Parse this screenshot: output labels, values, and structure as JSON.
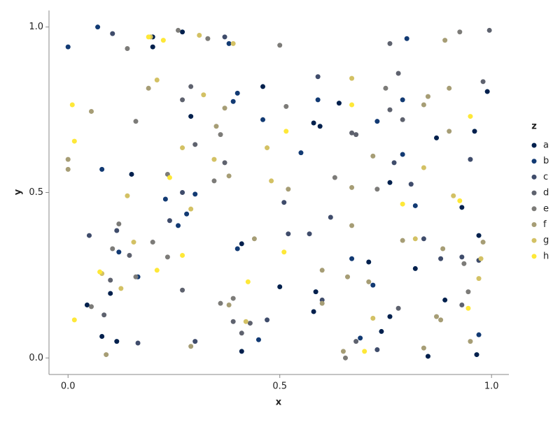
{
  "chart_data": {
    "type": "scatter",
    "x_label": "x",
    "y_label": "y",
    "legend_title": "z",
    "legend_position": "right",
    "xlim": [
      -0.045,
      1.041
    ],
    "ylim": [
      -0.05,
      1.05
    ],
    "xticks": [
      {
        "value": 0,
        "label": "0.0"
      },
      {
        "value": 0.5,
        "label": "0.5"
      },
      {
        "value": 1,
        "label": "1.0"
      }
    ],
    "yticks": [
      {
        "value": 0,
        "label": "0.0"
      },
      {
        "value": 0.5,
        "label": "0.5"
      },
      {
        "value": 1,
        "label": "1.0"
      }
    ],
    "series": [
      {
        "name": "a",
        "color": "#00204d",
        "x": [
          0.27,
          0.2,
          0.2,
          0.46,
          0.29,
          0.15,
          0.595,
          0.58,
          0.64,
          0.87,
          0.99,
          0.96,
          0.76,
          0.93,
          0.97,
          0.41,
          0.71,
          0.5,
          0.585,
          0.1,
          0.89,
          0.045,
          0.58,
          0.74,
          0.08,
          0.115,
          0.41,
          0.85,
          0.965,
          0.76,
          0.82
        ],
        "y": [
          0.985,
          0.97,
          0.94,
          0.82,
          0.73,
          0.555,
          0.7,
          0.71,
          0.77,
          0.665,
          0.805,
          0.685,
          0.53,
          0.455,
          0.37,
          0.345,
          0.29,
          0.215,
          0.2,
          0.195,
          0.175,
          0.16,
          0.14,
          0.08,
          0.065,
          0.05,
          0.02,
          0.005,
          0.01,
          0.125,
          0.27
        ]
      },
      {
        "name": "b",
        "color": "#123a73",
        "x": [
          0.07,
          0.0,
          0.38,
          0.8,
          0.4,
          0.39,
          0.46,
          0.55,
          0.59,
          0.73,
          0.79,
          0.79,
          0.08,
          0.23,
          0.3,
          0.28,
          0.26,
          0.4,
          0.165,
          0.67,
          0.72,
          0.69,
          0.45,
          0.97,
          0.82,
          0.12
        ],
        "y": [
          1.0,
          0.94,
          0.95,
          0.965,
          0.8,
          0.775,
          0.72,
          0.62,
          0.78,
          0.715,
          0.78,
          0.615,
          0.57,
          0.48,
          0.495,
          0.435,
          0.4,
          0.33,
          0.245,
          0.3,
          0.22,
          0.06,
          0.055,
          0.07,
          0.46,
          0.32
        ]
      },
      {
        "name": "c",
        "color": "#3f4c6b",
        "x": [
          0.105,
          0.37,
          0.59,
          0.77,
          0.81,
          0.51,
          0.52,
          0.57,
          0.62,
          0.27,
          0.24,
          0.115,
          0.05,
          0.84,
          0.88,
          0.93,
          0.97,
          0.95,
          0.47,
          0.6,
          0.3,
          0.165,
          0.73
        ],
        "y": [
          0.98,
          0.97,
          0.85,
          0.59,
          0.525,
          0.47,
          0.375,
          0.375,
          0.425,
          0.5,
          0.415,
          0.385,
          0.37,
          0.36,
          0.3,
          0.305,
          0.295,
          0.6,
          0.115,
          0.175,
          0.05,
          0.045,
          0.025
        ]
      },
      {
        "name": "d",
        "color": "#5e626e",
        "x": [
          0.995,
          0.76,
          0.78,
          0.98,
          0.29,
          0.27,
          0.76,
          0.79,
          0.3,
          0.37,
          0.67,
          0.68,
          0.145,
          0.1,
          0.27,
          0.085,
          0.39,
          0.41,
          0.43,
          0.68,
          0.78,
          0.93
        ],
        "y": [
          0.99,
          0.95,
          0.86,
          0.835,
          0.82,
          0.78,
          0.75,
          0.72,
          0.645,
          0.59,
          0.68,
          0.675,
          0.31,
          0.235,
          0.205,
          0.13,
          0.11,
          0.075,
          0.105,
          0.05,
          0.15,
          0.16
        ]
      },
      {
        "name": "e",
        "color": "#7c7b78",
        "x": [
          0.26,
          0.33,
          0.14,
          0.5,
          0.925,
          0.75,
          0.515,
          0.16,
          0.36,
          0.235,
          0.345,
          0.63,
          0.73,
          0.12,
          0.105,
          0.2,
          0.16,
          0.235,
          0.36,
          0.39,
          0.655,
          0.935,
          0.945,
          0.055
        ],
        "y": [
          0.99,
          0.965,
          0.935,
          0.945,
          0.985,
          0.815,
          0.76,
          0.715,
          0.675,
          0.555,
          0.535,
          0.545,
          0.51,
          0.405,
          0.33,
          0.35,
          0.245,
          0.305,
          0.165,
          0.18,
          0.0,
          0.285,
          0.2,
          0.155
        ]
      },
      {
        "name": "f",
        "color": "#a69d75",
        "x": [
          0.19,
          0.055,
          0.37,
          0.35,
          0.0,
          0.0,
          0.38,
          0.52,
          0.67,
          0.72,
          0.85,
          0.84,
          0.9,
          0.9,
          0.89,
          0.44,
          0.67,
          0.79,
          0.885,
          0.98,
          0.71,
          0.6,
          0.66,
          0.09,
          0.29,
          0.87,
          0.88,
          0.95,
          0.65,
          0.84,
          0.6,
          0.38
        ],
        "y": [
          0.815,
          0.745,
          0.755,
          0.7,
          0.6,
          0.57,
          0.55,
          0.51,
          0.515,
          0.61,
          0.79,
          0.765,
          0.815,
          0.685,
          0.96,
          0.36,
          0.4,
          0.355,
          0.33,
          0.35,
          0.23,
          0.265,
          0.245,
          0.01,
          0.035,
          0.125,
          0.115,
          0.05,
          0.02,
          0.03,
          0.165,
          0.16
        ]
      },
      {
        "name": "g",
        "color": "#d3c164",
        "x": [
          0.195,
          0.31,
          0.39,
          0.21,
          0.32,
          0.67,
          0.47,
          0.27,
          0.345,
          0.48,
          0.84,
          0.91,
          0.29,
          0.14,
          0.155,
          0.08,
          0.72,
          0.42,
          0.97,
          0.975,
          0.125,
          0.82
        ],
        "y": [
          0.97,
          0.975,
          0.95,
          0.84,
          0.795,
          0.845,
          0.635,
          0.635,
          0.6,
          0.535,
          0.575,
          0.49,
          0.45,
          0.49,
          0.35,
          0.255,
          0.12,
          0.11,
          0.24,
          0.3,
          0.21,
          0.36
        ]
      },
      {
        "name": "h",
        "color": "#fee838",
        "x": [
          0.19,
          0.225,
          0.01,
          0.015,
          0.515,
          0.67,
          0.95,
          0.24,
          0.925,
          0.79,
          0.51,
          0.27,
          0.21,
          0.075,
          0.425,
          0.015,
          0.7,
          0.945
        ],
        "y": [
          0.97,
          0.96,
          0.765,
          0.655,
          0.685,
          0.765,
          0.73,
          0.545,
          0.475,
          0.465,
          0.32,
          0.31,
          0.265,
          0.26,
          0.23,
          0.115,
          0.02,
          0.15
        ]
      }
    ]
  }
}
